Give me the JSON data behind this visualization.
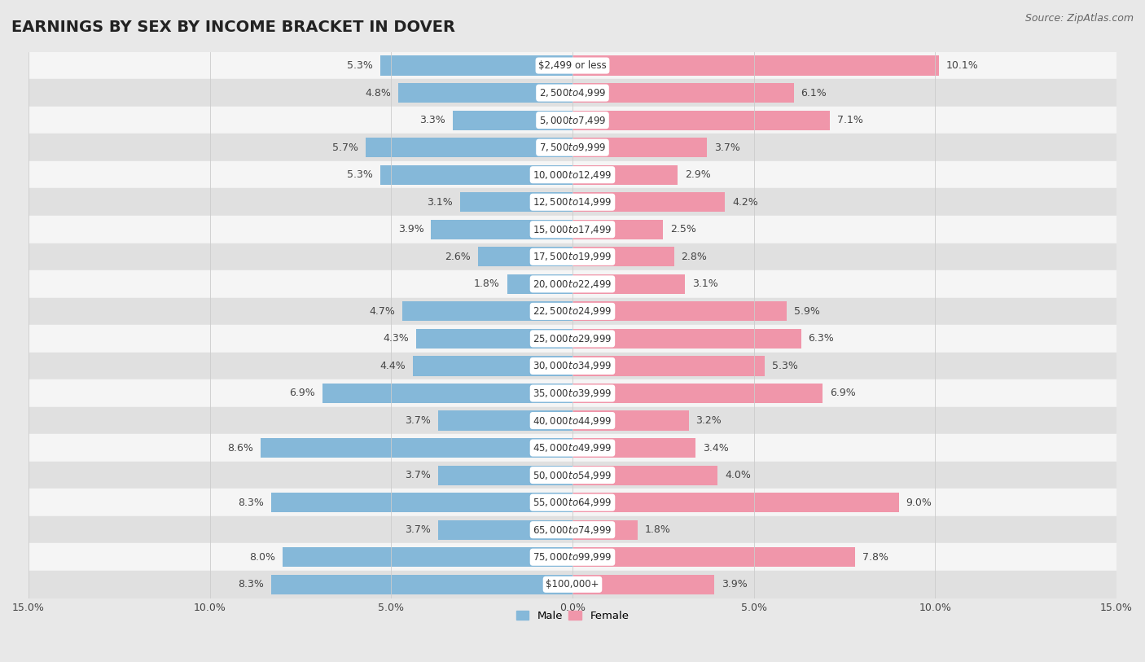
{
  "title": "EARNINGS BY SEX BY INCOME BRACKET IN DOVER",
  "source": "Source: ZipAtlas.com",
  "categories": [
    "$2,499 or less",
    "$2,500 to $4,999",
    "$5,000 to $7,499",
    "$7,500 to $9,999",
    "$10,000 to $12,499",
    "$12,500 to $14,999",
    "$15,000 to $17,499",
    "$17,500 to $19,999",
    "$20,000 to $22,499",
    "$22,500 to $24,999",
    "$25,000 to $29,999",
    "$30,000 to $34,999",
    "$35,000 to $39,999",
    "$40,000 to $44,999",
    "$45,000 to $49,999",
    "$50,000 to $54,999",
    "$55,000 to $64,999",
    "$65,000 to $74,999",
    "$75,000 to $99,999",
    "$100,000+"
  ],
  "male": [
    5.3,
    4.8,
    3.3,
    5.7,
    5.3,
    3.1,
    3.9,
    2.6,
    1.8,
    4.7,
    4.3,
    4.4,
    6.9,
    3.7,
    8.6,
    3.7,
    8.3,
    3.7,
    8.0,
    8.3
  ],
  "female": [
    10.1,
    6.1,
    7.1,
    3.7,
    2.9,
    4.2,
    2.5,
    2.8,
    3.1,
    5.9,
    6.3,
    5.3,
    6.9,
    3.2,
    3.4,
    4.0,
    9.0,
    1.8,
    7.8,
    3.9
  ],
  "male_color": "#85b8d9",
  "female_color": "#f096aa",
  "male_label": "Male",
  "female_label": "Female",
  "xlim": 15.0,
  "bg_color": "#e8e8e8",
  "row_light": "#f5f5f5",
  "row_dark": "#e0e0e0",
  "label_box_color": "#ffffff",
  "title_fontsize": 14,
  "label_fontsize": 9,
  "tick_fontsize": 9,
  "source_fontsize": 9,
  "cat_fontsize": 8.5
}
